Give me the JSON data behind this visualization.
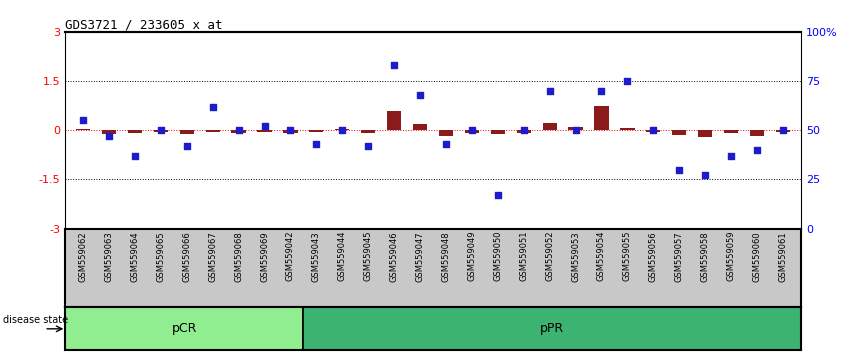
{
  "title": "GDS3721 / 233605_x_at",
  "samples": [
    "GSM559062",
    "GSM559063",
    "GSM559064",
    "GSM559065",
    "GSM559066",
    "GSM559067",
    "GSM559068",
    "GSM559069",
    "GSM559042",
    "GSM559043",
    "GSM559044",
    "GSM559045",
    "GSM559046",
    "GSM559047",
    "GSM559048",
    "GSM559049",
    "GSM559050",
    "GSM559051",
    "GSM559052",
    "GSM559053",
    "GSM559054",
    "GSM559055",
    "GSM559056",
    "GSM559057",
    "GSM559058",
    "GSM559059",
    "GSM559060",
    "GSM559061"
  ],
  "transformed_count": [
    0.05,
    -0.12,
    -0.1,
    -0.05,
    -0.12,
    -0.05,
    -0.1,
    -0.05,
    -0.08,
    -0.05,
    0.03,
    -0.08,
    0.6,
    0.18,
    -0.18,
    -0.1,
    -0.12,
    -0.08,
    0.22,
    0.1,
    0.75,
    0.08,
    -0.05,
    -0.15,
    -0.22,
    -0.08,
    -0.18,
    -0.05
  ],
  "percentile_rank": [
    55,
    47,
    37,
    50,
    42,
    62,
    50,
    52,
    50,
    43,
    50,
    42,
    83,
    68,
    43,
    50,
    17,
    50,
    70,
    50,
    70,
    75,
    50,
    30,
    27,
    37,
    40,
    50
  ],
  "pCR_count": 9,
  "pPR_count": 19,
  "bar_color": "#8B1A1A",
  "dot_color": "#1C1CCD",
  "background_color": "#ffffff",
  "pCR_color": "#90EE90",
  "pPR_color": "#3CB371",
  "ylim": [
    -3,
    3
  ],
  "y2lim": [
    0,
    100
  ],
  "yticks_left": [
    -3,
    -1.5,
    0,
    1.5,
    3
  ],
  "yticks_right": [
    0,
    25,
    50,
    75,
    100
  ],
  "ytick_labels_right": [
    "0",
    "25",
    "50",
    "75",
    "100%"
  ],
  "ytick_labels_left": [
    "-3",
    "-1.5",
    "0",
    "1.5",
    "3"
  ],
  "label_bg": "#c8c8c8"
}
